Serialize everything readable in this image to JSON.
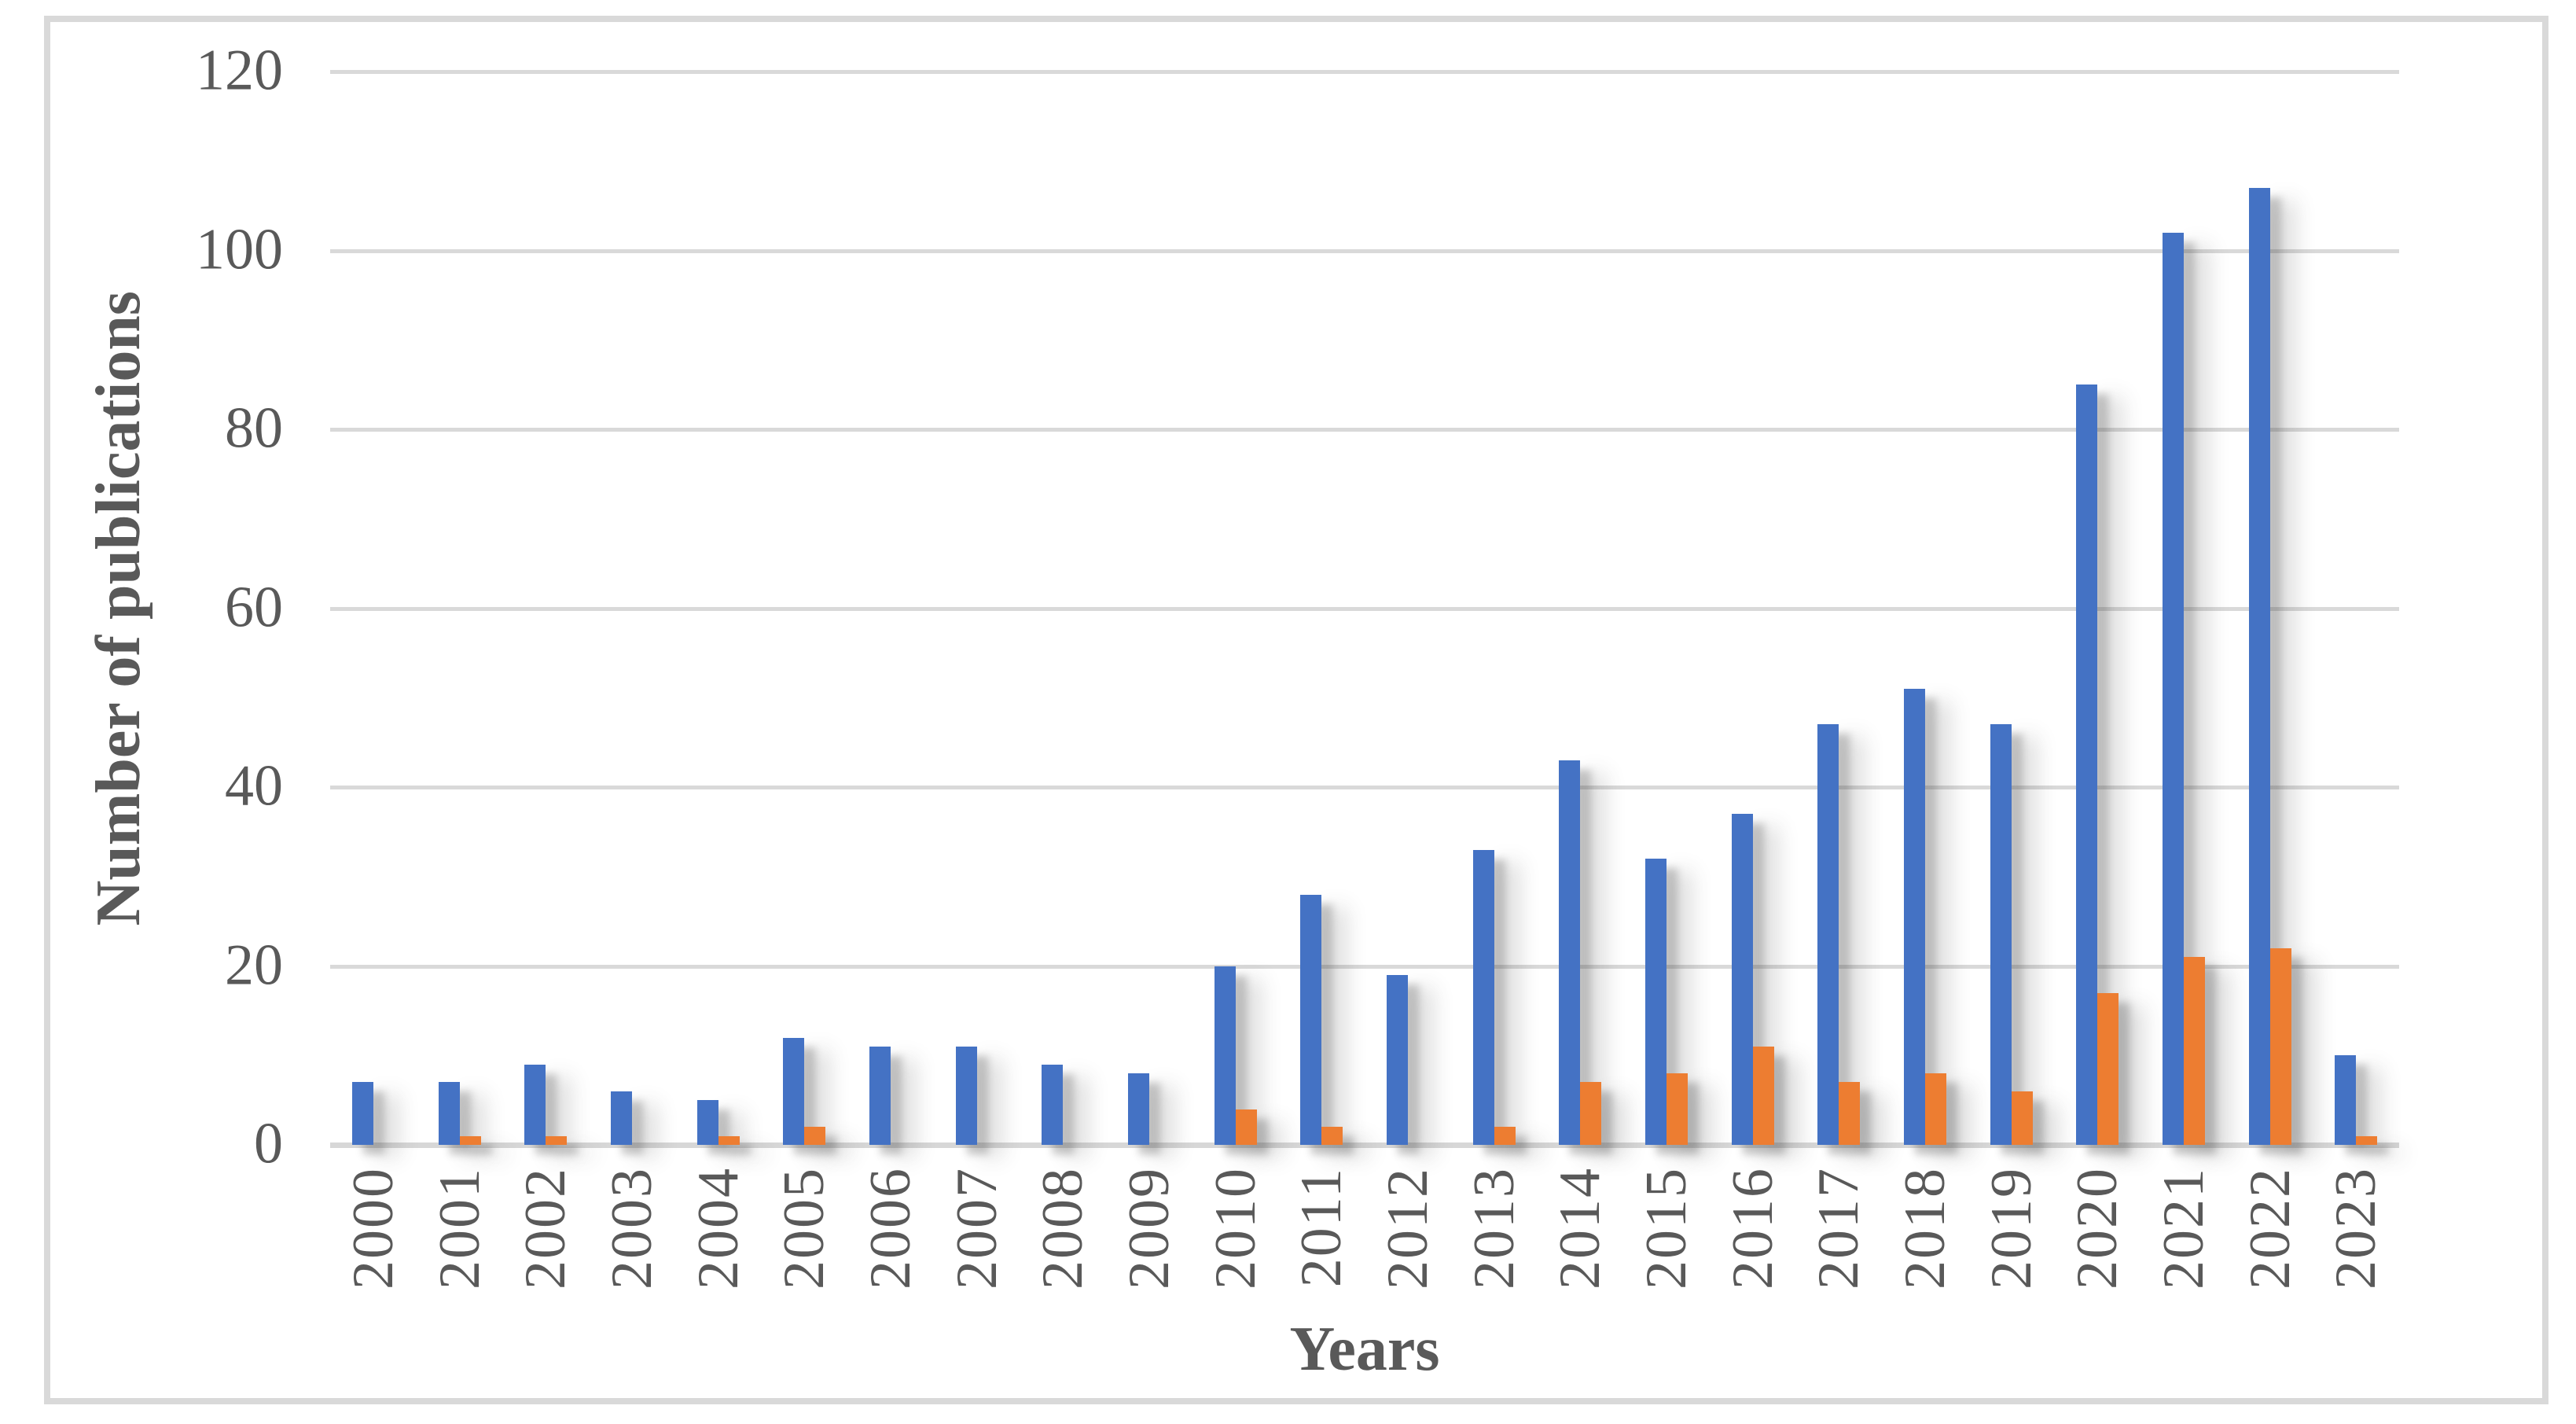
{
  "figure": {
    "y_axis": {
      "title": "Number of publications",
      "ticks": [
        0,
        20,
        40,
        60,
        80,
        100,
        120
      ],
      "max": 120
    },
    "x_axis": {
      "title": "Years"
    },
    "colors": {
      "series_primary": "#4472C4",
      "series_secondary": "#ED7D31",
      "gridline": "#D9D9D9",
      "text": "#595959",
      "frame": "#D9D9D9"
    }
  },
  "chart_data": {
    "type": "bar",
    "title": "",
    "xlabel": "Years",
    "ylabel": "Number of publications",
    "ylim": [
      0,
      120
    ],
    "y_tick_step": 20,
    "grid": true,
    "legend": false,
    "categories": [
      "2000",
      "2001",
      "2002",
      "2003",
      "2004",
      "2005",
      "2006",
      "2007",
      "2008",
      "2009",
      "2010",
      "2011",
      "2012",
      "2013",
      "2014",
      "2015",
      "2016",
      "2017",
      "2018",
      "2019",
      "2020",
      "2021",
      "2022",
      "2023"
    ],
    "series": [
      {
        "color": "#4472C4",
        "values": [
          7,
          7,
          9,
          6,
          5,
          12,
          11,
          11,
          9,
          8,
          20,
          28,
          19,
          33,
          43,
          32,
          37,
          47,
          51,
          47,
          85,
          102,
          107,
          10
        ]
      },
      {
        "color": "#ED7D31",
        "values": [
          0,
          1,
          1,
          0,
          1,
          2,
          0,
          0,
          0,
          0,
          4,
          2,
          0,
          2,
          7,
          8,
          11,
          7,
          8,
          6,
          17,
          21,
          22,
          1
        ]
      }
    ]
  }
}
